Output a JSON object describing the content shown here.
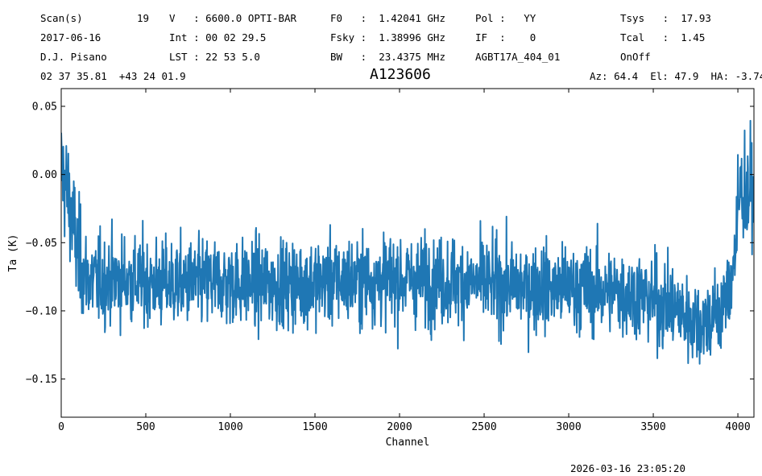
{
  "header": {
    "row1": [
      "Scan(s)",
      "19",
      "V   : 6600.0 OPTI-BAR",
      "F0   :  1.42041 GHz",
      "Pol :   YY",
      "Tsys   :  17.93"
    ],
    "row2": [
      "2017-06-16",
      "Int : 00 02 29.5",
      "Fsky :  1.38996 GHz",
      "IF  :    0",
      "Tcal   :  1.45"
    ],
    "row3": [
      "D.J. Pisano",
      "LST : 22 53 5.0",
      "BW   :  23.4375 MHz",
      "AGBT17A_404_01",
      "OnOff"
    ],
    "coords": "02 37 35.81  +43 24 01.9",
    "source": "A123606",
    "azel": "Az: 64.4  El: 47.9  HA: -3.74"
  },
  "footer": {
    "timestamp": "2026-03-16 23:05:20"
  },
  "chart_data": {
    "type": "line",
    "title": "A123606",
    "xlabel": "Channel",
    "ylabel": "Ta (K)",
    "xlim": [
      0,
      4095
    ],
    "ylim": [
      -0.178,
      0.063
    ],
    "xticks": [
      0,
      500,
      1000,
      1500,
      2000,
      2500,
      3000,
      3500,
      4000
    ],
    "yticks": [
      0.05,
      0.0,
      -0.05,
      -0.1,
      -0.15
    ],
    "ytick_labels": [
      "0.05",
      "0.00",
      "−0.05",
      "−0.10",
      "−0.15"
    ],
    "grid": false,
    "line_color": "#1f77b4",
    "series": [
      {
        "x": [
          0,
          10,
          20,
          30,
          40,
          50,
          60,
          80,
          100,
          120,
          150,
          200,
          250,
          300,
          350,
          400,
          450,
          500,
          550,
          600,
          650,
          700,
          750,
          800,
          900,
          1000,
          1100,
          1200,
          1300,
          1400,
          1500,
          1600,
          1700,
          1800,
          1900,
          2000,
          2100,
          2200,
          2300,
          2400,
          2500,
          2600,
          2700,
          2800,
          2900,
          3000,
          3100,
          3200,
          3300,
          3400,
          3500,
          3550,
          3600,
          3650,
          3700,
          3750,
          3800,
          3850,
          3900,
          3950,
          3990,
          4010,
          4030,
          4050,
          4070,
          4090
        ],
        "y": [
          0.003,
          0.0,
          -0.005,
          -0.01,
          -0.015,
          -0.02,
          -0.03,
          -0.045,
          -0.06,
          -0.07,
          -0.075,
          -0.078,
          -0.078,
          -0.077,
          -0.077,
          -0.077,
          -0.078,
          -0.078,
          -0.08,
          -0.08,
          -0.08,
          -0.08,
          -0.08,
          -0.08,
          -0.079,
          -0.079,
          -0.08,
          -0.08,
          -0.08,
          -0.08,
          -0.079,
          -0.078,
          -0.078,
          -0.077,
          -0.077,
          -0.077,
          -0.077,
          -0.078,
          -0.078,
          -0.079,
          -0.08,
          -0.081,
          -0.082,
          -0.082,
          -0.083,
          -0.083,
          -0.084,
          -0.085,
          -0.086,
          -0.088,
          -0.092,
          -0.094,
          -0.097,
          -0.1,
          -0.104,
          -0.107,
          -0.108,
          -0.105,
          -0.1,
          -0.085,
          -0.05,
          -0.015,
          -0.008,
          -0.015,
          -0.012,
          -0.02
        ],
        "noise_sd": 0.016
      }
    ]
  }
}
